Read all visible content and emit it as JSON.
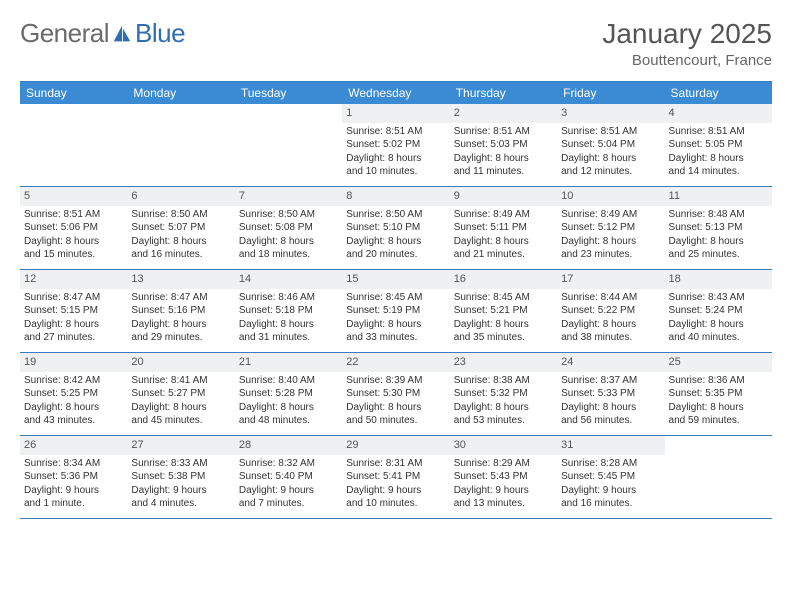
{
  "logo": {
    "text_left": "General",
    "text_right": "Blue",
    "icon_color": "#2f6fb0"
  },
  "title": {
    "month_year": "January 2025",
    "location": "Bouttencourt, France"
  },
  "colors": {
    "header_bg": "#3b8bd4",
    "header_text": "#ffffff",
    "row_border": "#3b7bbf",
    "daynum_bg": "#eef0f2",
    "daynum_text": "#555555",
    "body_text": "#333333",
    "page_bg": "#ffffff",
    "logo_gray": "#6b6b6b"
  },
  "day_names": [
    "Sunday",
    "Monday",
    "Tuesday",
    "Wednesday",
    "Thursday",
    "Friday",
    "Saturday"
  ],
  "weeks": [
    [
      {
        "empty": true
      },
      {
        "empty": true
      },
      {
        "empty": true
      },
      {
        "n": "1",
        "sr": "Sunrise: 8:51 AM",
        "ss": "Sunset: 5:02 PM",
        "d1": "Daylight: 8 hours",
        "d2": "and 10 minutes."
      },
      {
        "n": "2",
        "sr": "Sunrise: 8:51 AM",
        "ss": "Sunset: 5:03 PM",
        "d1": "Daylight: 8 hours",
        "d2": "and 11 minutes."
      },
      {
        "n": "3",
        "sr": "Sunrise: 8:51 AM",
        "ss": "Sunset: 5:04 PM",
        "d1": "Daylight: 8 hours",
        "d2": "and 12 minutes."
      },
      {
        "n": "4",
        "sr": "Sunrise: 8:51 AM",
        "ss": "Sunset: 5:05 PM",
        "d1": "Daylight: 8 hours",
        "d2": "and 14 minutes."
      }
    ],
    [
      {
        "n": "5",
        "sr": "Sunrise: 8:51 AM",
        "ss": "Sunset: 5:06 PM",
        "d1": "Daylight: 8 hours",
        "d2": "and 15 minutes."
      },
      {
        "n": "6",
        "sr": "Sunrise: 8:50 AM",
        "ss": "Sunset: 5:07 PM",
        "d1": "Daylight: 8 hours",
        "d2": "and 16 minutes."
      },
      {
        "n": "7",
        "sr": "Sunrise: 8:50 AM",
        "ss": "Sunset: 5:08 PM",
        "d1": "Daylight: 8 hours",
        "d2": "and 18 minutes."
      },
      {
        "n": "8",
        "sr": "Sunrise: 8:50 AM",
        "ss": "Sunset: 5:10 PM",
        "d1": "Daylight: 8 hours",
        "d2": "and 20 minutes."
      },
      {
        "n": "9",
        "sr": "Sunrise: 8:49 AM",
        "ss": "Sunset: 5:11 PM",
        "d1": "Daylight: 8 hours",
        "d2": "and 21 minutes."
      },
      {
        "n": "10",
        "sr": "Sunrise: 8:49 AM",
        "ss": "Sunset: 5:12 PM",
        "d1": "Daylight: 8 hours",
        "d2": "and 23 minutes."
      },
      {
        "n": "11",
        "sr": "Sunrise: 8:48 AM",
        "ss": "Sunset: 5:13 PM",
        "d1": "Daylight: 8 hours",
        "d2": "and 25 minutes."
      }
    ],
    [
      {
        "n": "12",
        "sr": "Sunrise: 8:47 AM",
        "ss": "Sunset: 5:15 PM",
        "d1": "Daylight: 8 hours",
        "d2": "and 27 minutes."
      },
      {
        "n": "13",
        "sr": "Sunrise: 8:47 AM",
        "ss": "Sunset: 5:16 PM",
        "d1": "Daylight: 8 hours",
        "d2": "and 29 minutes."
      },
      {
        "n": "14",
        "sr": "Sunrise: 8:46 AM",
        "ss": "Sunset: 5:18 PM",
        "d1": "Daylight: 8 hours",
        "d2": "and 31 minutes."
      },
      {
        "n": "15",
        "sr": "Sunrise: 8:45 AM",
        "ss": "Sunset: 5:19 PM",
        "d1": "Daylight: 8 hours",
        "d2": "and 33 minutes."
      },
      {
        "n": "16",
        "sr": "Sunrise: 8:45 AM",
        "ss": "Sunset: 5:21 PM",
        "d1": "Daylight: 8 hours",
        "d2": "and 35 minutes."
      },
      {
        "n": "17",
        "sr": "Sunrise: 8:44 AM",
        "ss": "Sunset: 5:22 PM",
        "d1": "Daylight: 8 hours",
        "d2": "and 38 minutes."
      },
      {
        "n": "18",
        "sr": "Sunrise: 8:43 AM",
        "ss": "Sunset: 5:24 PM",
        "d1": "Daylight: 8 hours",
        "d2": "and 40 minutes."
      }
    ],
    [
      {
        "n": "19",
        "sr": "Sunrise: 8:42 AM",
        "ss": "Sunset: 5:25 PM",
        "d1": "Daylight: 8 hours",
        "d2": "and 43 minutes."
      },
      {
        "n": "20",
        "sr": "Sunrise: 8:41 AM",
        "ss": "Sunset: 5:27 PM",
        "d1": "Daylight: 8 hours",
        "d2": "and 45 minutes."
      },
      {
        "n": "21",
        "sr": "Sunrise: 8:40 AM",
        "ss": "Sunset: 5:28 PM",
        "d1": "Daylight: 8 hours",
        "d2": "and 48 minutes."
      },
      {
        "n": "22",
        "sr": "Sunrise: 8:39 AM",
        "ss": "Sunset: 5:30 PM",
        "d1": "Daylight: 8 hours",
        "d2": "and 50 minutes."
      },
      {
        "n": "23",
        "sr": "Sunrise: 8:38 AM",
        "ss": "Sunset: 5:32 PM",
        "d1": "Daylight: 8 hours",
        "d2": "and 53 minutes."
      },
      {
        "n": "24",
        "sr": "Sunrise: 8:37 AM",
        "ss": "Sunset: 5:33 PM",
        "d1": "Daylight: 8 hours",
        "d2": "and 56 minutes."
      },
      {
        "n": "25",
        "sr": "Sunrise: 8:36 AM",
        "ss": "Sunset: 5:35 PM",
        "d1": "Daylight: 8 hours",
        "d2": "and 59 minutes."
      }
    ],
    [
      {
        "n": "26",
        "sr": "Sunrise: 8:34 AM",
        "ss": "Sunset: 5:36 PM",
        "d1": "Daylight: 9 hours",
        "d2": "and 1 minute."
      },
      {
        "n": "27",
        "sr": "Sunrise: 8:33 AM",
        "ss": "Sunset: 5:38 PM",
        "d1": "Daylight: 9 hours",
        "d2": "and 4 minutes."
      },
      {
        "n": "28",
        "sr": "Sunrise: 8:32 AM",
        "ss": "Sunset: 5:40 PM",
        "d1": "Daylight: 9 hours",
        "d2": "and 7 minutes."
      },
      {
        "n": "29",
        "sr": "Sunrise: 8:31 AM",
        "ss": "Sunset: 5:41 PM",
        "d1": "Daylight: 9 hours",
        "d2": "and 10 minutes."
      },
      {
        "n": "30",
        "sr": "Sunrise: 8:29 AM",
        "ss": "Sunset: 5:43 PM",
        "d1": "Daylight: 9 hours",
        "d2": "and 13 minutes."
      },
      {
        "n": "31",
        "sr": "Sunrise: 8:28 AM",
        "ss": "Sunset: 5:45 PM",
        "d1": "Daylight: 9 hours",
        "d2": "and 16 minutes."
      },
      {
        "empty": true
      }
    ]
  ]
}
